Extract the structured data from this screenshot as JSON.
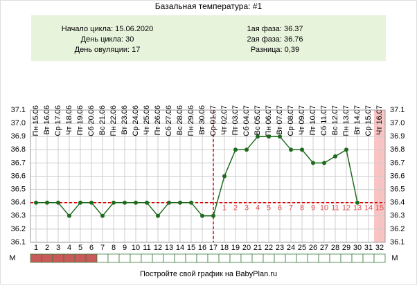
{
  "chart_data": {
    "type": "line",
    "title": "Базальная температура: #1",
    "info_left": [
      "Начало цикла: 15.06.2020",
      "День цикла: 30",
      "День овуляции: 17"
    ],
    "info_right": [
      "1ая фаза: 36.37",
      "2ая фаза: 36.76",
      "Разница: 0,39"
    ],
    "categories": [
      "Пн 15.06",
      "Вт 16.06",
      "Ср 17.06",
      "Чт 18.06",
      "Пт 19.06",
      "Сб 20.06",
      "Вс 21.06",
      "Пн 22.06",
      "Вт 23.06",
      "Ср 24.06",
      "Чт 25.06",
      "Пт 26.06",
      "Сб 27.06",
      "Вс 28.06",
      "Пн 29.06",
      "Вт 30.06",
      "Ср 01.07",
      "Чт 02.07",
      "Пт 03.07",
      "Сб 04.07",
      "Вс 05.07",
      "Пн 06.07",
      "Вт 07.07",
      "Ср 08.07",
      "Чт 09.07",
      "Пт 10.07",
      "Сб 11.07",
      "Вс 12.07",
      "Пн 13.07",
      "Вт 14.07",
      "Ср 15.07",
      "Чт 16.07"
    ],
    "x": [
      1,
      2,
      3,
      4,
      5,
      6,
      7,
      8,
      9,
      10,
      11,
      12,
      13,
      14,
      15,
      16,
      17,
      18,
      19,
      20,
      21,
      22,
      23,
      24,
      25,
      26,
      27,
      28,
      29,
      30,
      31,
      32
    ],
    "values": [
      36.4,
      36.4,
      36.4,
      36.3,
      36.4,
      36.4,
      36.3,
      36.4,
      36.4,
      36.4,
      36.4,
      36.3,
      36.4,
      36.4,
      36.4,
      36.3,
      36.3,
      36.6,
      36.8,
      36.8,
      36.9,
      36.9,
      36.9,
      36.8,
      36.8,
      36.7,
      36.7,
      36.75,
      36.8,
      36.4,
      null,
      null
    ],
    "color": "#1e6b1e",
    "ylim": [
      36.1,
      37.1
    ],
    "yticks": [
      36.1,
      36.2,
      36.3,
      36.4,
      36.5,
      36.6,
      36.7,
      36.8,
      36.9,
      {
        "value": 37,
        "label": "37.0"
      },
      37.1
    ],
    "grid": true,
    "cover_line": 36.4,
    "ovulation_day": 17,
    "second_phase_labels": [
      1,
      2,
      3,
      4,
      5,
      6,
      7,
      8,
      9,
      10,
      11,
      12,
      13,
      14,
      15
    ],
    "highlight_day": 32,
    "menstruation_label": "М",
    "menstruation_days": [
      1,
      2,
      3,
      4,
      5,
      6
    ],
    "footer": "Постройте свой график на BabyPlan.ru"
  }
}
